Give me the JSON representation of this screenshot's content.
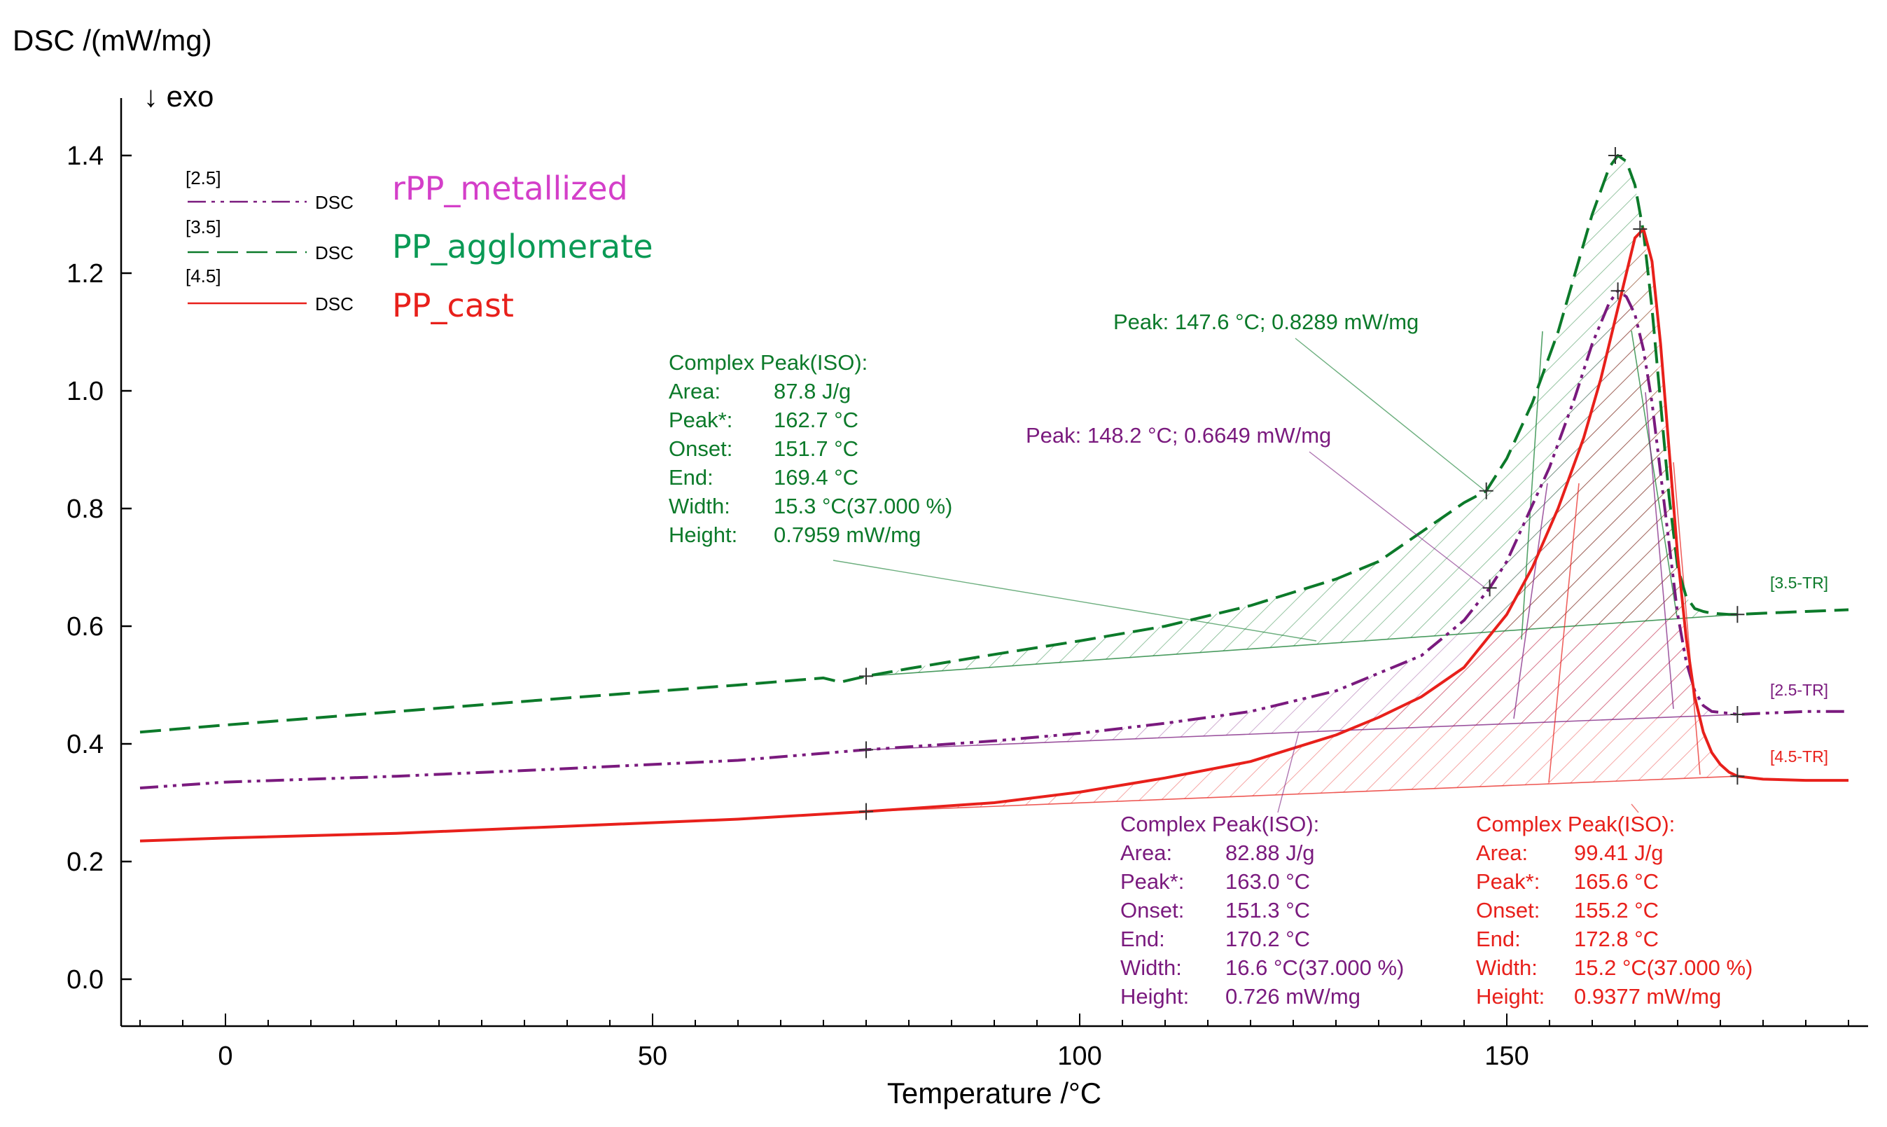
{
  "chart_data": {
    "type": "line",
    "ylabel": "DSC /(mW/mg)",
    "exo_label": "↓ exo",
    "xlabel": "Temperature /°C",
    "xlim": [
      -10,
      190
    ],
    "ylim": [
      -0.08,
      1.5
    ],
    "x_ticks": [
      0,
      50,
      100,
      150
    ],
    "x_tick_labels": [
      "0",
      "50",
      "100",
      "150"
    ],
    "y_ticks": [
      0.0,
      0.2,
      0.4,
      0.6,
      0.8,
      1.0,
      1.2,
      1.4
    ],
    "y_tick_labels": [
      "0.0",
      "0.2",
      "0.4",
      "0.6",
      "0.8",
      "1.0",
      "1.2",
      "1.4"
    ],
    "series": [
      {
        "key": "rpp",
        "name": "rPP_metallized",
        "legend_tag": "[2.5]",
        "legend_dsc": "DSC",
        "end_tag": "[2.5-TR]",
        "color": "#7a1a7e",
        "name_color": "#d43fc9",
        "dash": "26 8 5 8 5 8",
        "x": [
          -10,
          0,
          20,
          40,
          60,
          75,
          90,
          100,
          110,
          120,
          130,
          140,
          145,
          148,
          150,
          155,
          158,
          160,
          162,
          163,
          164,
          165,
          166,
          167,
          168,
          169,
          170,
          171,
          172,
          173,
          174,
          176,
          177,
          180,
          185,
          190
        ],
        "y": [
          0.325,
          0.335,
          0.345,
          0.358,
          0.372,
          0.39,
          0.405,
          0.418,
          0.435,
          0.455,
          0.49,
          0.55,
          0.61,
          0.665,
          0.71,
          0.87,
          0.99,
          1.08,
          1.15,
          1.17,
          1.16,
          1.13,
          1.07,
          0.98,
          0.86,
          0.74,
          0.62,
          0.54,
          0.49,
          0.465,
          0.455,
          0.452,
          0.45,
          0.452,
          0.455,
          0.455
        ],
        "baseline": {
          "x": [
            75,
            177
          ],
          "y": [
            0.39,
            0.45
          ]
        },
        "markers": [
          {
            "x": 75,
            "y": 0.39
          },
          {
            "x": 148,
            "y": 0.665
          },
          {
            "x": 163,
            "y": 1.17
          },
          {
            "x": 177,
            "y": 0.45
          }
        ]
      },
      {
        "key": "ppa",
        "name": "PP_agglomerate",
        "legend_tag": "[3.5]",
        "legend_dsc": "DSC",
        "end_tag": "[3.5-TR]",
        "color": "#0c7a2a",
        "name_color": "#0a9a55",
        "dash": "30 12",
        "x": [
          -10,
          0,
          20,
          40,
          60,
          70,
          72,
          75,
          80,
          90,
          100,
          110,
          120,
          130,
          135,
          140,
          145,
          147.6,
          150,
          153,
          156,
          158,
          160,
          162,
          163,
          164,
          165,
          166,
          167,
          168,
          169,
          170,
          171,
          172,
          173,
          174,
          176,
          177,
          180,
          185,
          190
        ],
        "y": [
          0.42,
          0.432,
          0.455,
          0.478,
          0.5,
          0.512,
          0.505,
          0.515,
          0.528,
          0.552,
          0.575,
          0.6,
          0.635,
          0.68,
          0.71,
          0.76,
          0.81,
          0.83,
          0.885,
          0.98,
          1.1,
          1.2,
          1.3,
          1.38,
          1.4,
          1.39,
          1.35,
          1.27,
          1.14,
          0.98,
          0.82,
          0.7,
          0.65,
          0.63,
          0.625,
          0.622,
          0.62,
          0.62,
          0.622,
          0.625,
          0.628
        ],
        "baseline": {
          "x": [
            75,
            177
          ],
          "y": [
            0.515,
            0.62
          ]
        },
        "markers": [
          {
            "x": 75,
            "y": 0.515
          },
          {
            "x": 147.6,
            "y": 0.83
          },
          {
            "x": 162.7,
            "y": 1.4
          },
          {
            "x": 177,
            "y": 0.62
          }
        ]
      },
      {
        "key": "ppc",
        "name": "PP_cast",
        "legend_tag": "[4.5]",
        "legend_dsc": "DSC",
        "end_tag": "[4.5-TR]",
        "color": "#e8201b",
        "name_color": "#e8201b",
        "dash": "",
        "x": [
          -10,
          0,
          20,
          40,
          60,
          75,
          90,
          100,
          110,
          120,
          130,
          135,
          140,
          145,
          150,
          153,
          156,
          159,
          161,
          163,
          164,
          165,
          166,
          167,
          168,
          169,
          170,
          171,
          172,
          173,
          174,
          175,
          176,
          177,
          180,
          185,
          190
        ],
        "y": [
          0.235,
          0.24,
          0.248,
          0.26,
          0.272,
          0.285,
          0.3,
          0.318,
          0.342,
          0.37,
          0.415,
          0.445,
          0.48,
          0.53,
          0.62,
          0.7,
          0.8,
          0.92,
          1.02,
          1.14,
          1.2,
          1.26,
          1.275,
          1.22,
          1.08,
          0.9,
          0.72,
          0.58,
          0.48,
          0.42,
          0.385,
          0.365,
          0.352,
          0.345,
          0.34,
          0.338,
          0.338
        ],
        "baseline": {
          "x": [
            75,
            177
          ],
          "y": [
            0.285,
            0.345
          ]
        },
        "markers": [
          {
            "x": 75,
            "y": 0.285
          },
          {
            "x": 165.6,
            "y": 1.275
          },
          {
            "x": 177,
            "y": 0.345
          }
        ]
      }
    ],
    "annotations": {
      "peak_green": "Peak: 147.6 °C; 0.8289 mW/mg",
      "peak_purple": "Peak: 148.2 °C; 0.6649 mW/mg",
      "green_box": [
        [
          "Complex Peak(ISO):",
          ""
        ],
        [
          "Area:",
          "87.8 J/g"
        ],
        [
          "Peak*:",
          "162.7 °C"
        ],
        [
          "Onset:",
          "151.7 °C"
        ],
        [
          "End:",
          "169.4 °C"
        ],
        [
          "Width:",
          "15.3 °C(37.000 %)"
        ],
        [
          "Height:",
          "0.7959 mW/mg"
        ]
      ],
      "purple_box": [
        [
          "Complex Peak(ISO):",
          ""
        ],
        [
          "Area:",
          "82.88 J/g"
        ],
        [
          "Peak*:",
          "163.0 °C"
        ],
        [
          "Onset:",
          "151.3 °C"
        ],
        [
          "End:",
          "170.2 °C"
        ],
        [
          "Width:",
          "16.6 °C(37.000 %)"
        ],
        [
          "Height:",
          "0.726 mW/mg"
        ]
      ],
      "red_box": [
        [
          "Complex Peak(ISO):",
          ""
        ],
        [
          "Area:",
          "99.41 J/g"
        ],
        [
          "Peak*:",
          "165.6 °C"
        ],
        [
          "Onset:",
          "155.2 °C"
        ],
        [
          "End:",
          "172.8 °C"
        ],
        [
          "Width:",
          "15.2 °C(37.000 %)"
        ],
        [
          "Height:",
          "0.9377 mW/mg"
        ]
      ]
    }
  }
}
